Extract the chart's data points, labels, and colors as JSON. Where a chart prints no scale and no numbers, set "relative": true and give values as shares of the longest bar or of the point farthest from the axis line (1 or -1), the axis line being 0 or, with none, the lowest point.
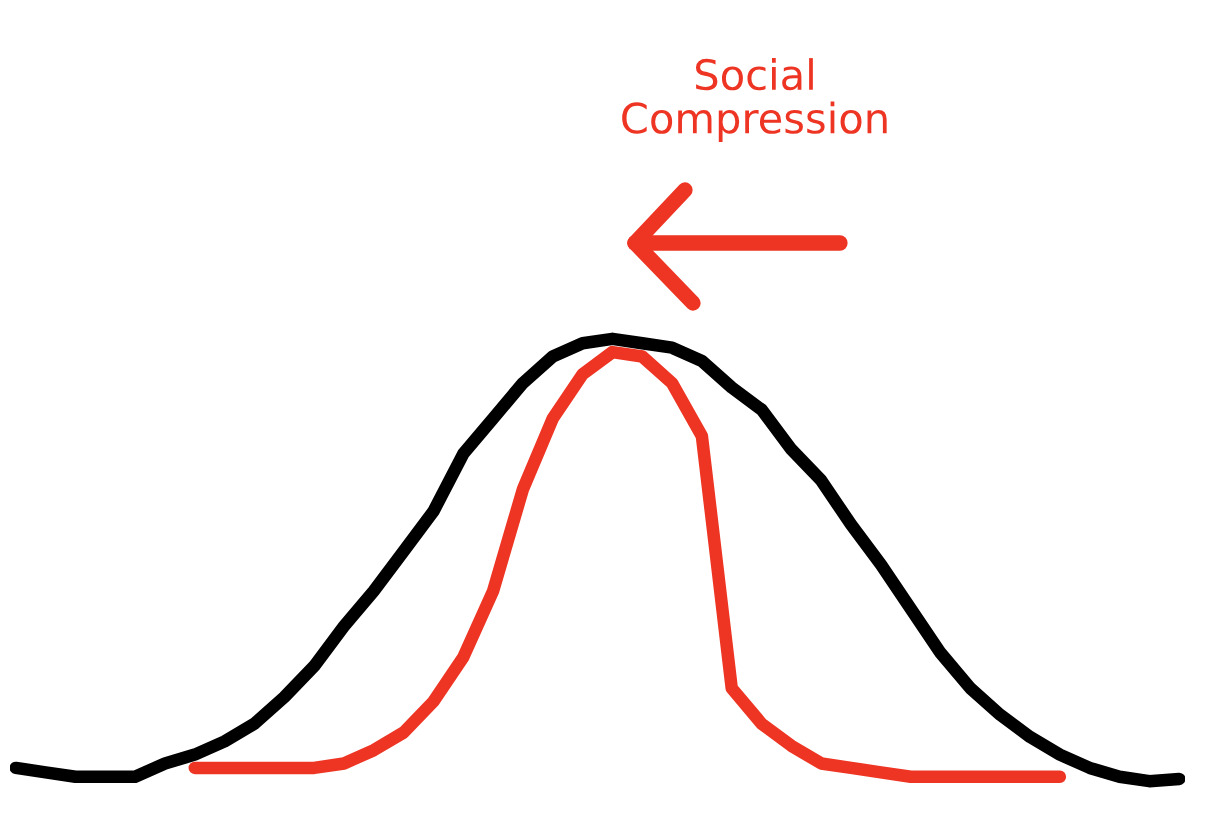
{
  "chart_data": {
    "type": "line",
    "relative": true,
    "categories": [
      null,
      null,
      null,
      null,
      null,
      null,
      null,
      null,
      null,
      null,
      null,
      null,
      null,
      null,
      null,
      null,
      null,
      null,
      null,
      null,
      null,
      null,
      null,
      null,
      null,
      null,
      null,
      null,
      null,
      null,
      null,
      null,
      null,
      null,
      null,
      null,
      null,
      null,
      null,
      null
    ],
    "series": [
      {
        "color": "#000000",
        "values": [
          0.03,
          0.02,
          0.01,
          0.01,
          0.01,
          0.04,
          0.06,
          0.09,
          0.13,
          0.19,
          0.26,
          0.35,
          0.43,
          0.52,
          0.61,
          0.74,
          0.82,
          0.9,
          0.96,
          0.99,
          1,
          0.99,
          0.98,
          0.95,
          0.89,
          0.84,
          0.75,
          0.68,
          0.58,
          0.49,
          0.39,
          0.29,
          0.21,
          0.15,
          0.1,
          0.06,
          0.03,
          0.01,
          0,
          0.005
        ]
      },
      {
        "color": "#ee3524",
        "values": [
          null,
          null,
          null,
          null,
          null,
          null,
          0.03,
          0.03,
          0.03,
          0.03,
          0.03,
          0.04,
          0.07,
          0.11,
          0.18,
          0.28,
          0.43,
          0.66,
          0.82,
          0.92,
          0.97,
          0.96,
          0.9,
          0.78,
          0.21,
          0.13,
          0.08,
          0.04,
          0.03,
          0.02,
          0.01,
          0.01,
          0.01,
          0.01,
          0.01,
          0.01,
          null,
          null,
          null,
          null
        ]
      }
    ],
    "annotations": [
      "Social Compression"
    ],
    "grid": false,
    "line_style": "solid"
  }
}
